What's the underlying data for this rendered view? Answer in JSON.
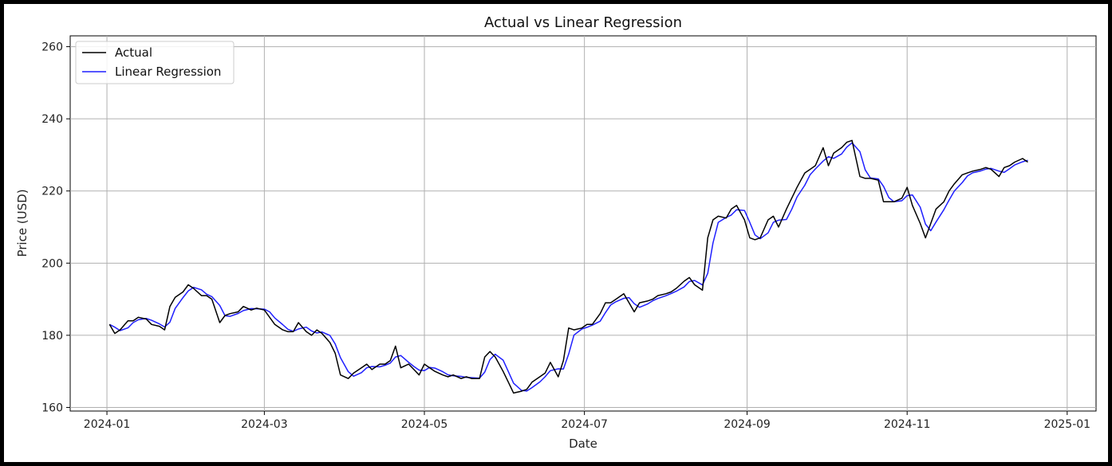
{
  "chart_data": {
    "type": "line",
    "title": "Actual vs Linear Regression",
    "xlabel": "Date",
    "ylabel": "Price (USD)",
    "grid": true,
    "legend_position": "top-left",
    "x_ticks": [
      "2024-01",
      "2024-03",
      "2024-05",
      "2024-07",
      "2024-09",
      "2024-11",
      "2025-01"
    ],
    "y_ticks": [
      160,
      180,
      200,
      220,
      240,
      260
    ],
    "xlim": [
      "2023-12-18",
      "2025-01-12"
    ],
    "ylim": [
      159,
      263
    ],
    "series": [
      {
        "name": "Actual",
        "color": "#000000",
        "points": [
          [
            "2024-01-02",
            183
          ],
          [
            "2024-01-04",
            180.5
          ],
          [
            "2024-01-06",
            181.5
          ],
          [
            "2024-01-09",
            184
          ],
          [
            "2024-01-11",
            184
          ],
          [
            "2024-01-13",
            185
          ],
          [
            "2024-01-16",
            184.5
          ],
          [
            "2024-01-18",
            183
          ],
          [
            "2024-01-21",
            182.5
          ],
          [
            "2024-01-23",
            181.5
          ],
          [
            "2024-01-25",
            188
          ],
          [
            "2024-01-27",
            190.5
          ],
          [
            "2024-01-30",
            192
          ],
          [
            "2024-02-01",
            194
          ],
          [
            "2024-02-03",
            193
          ],
          [
            "2024-02-06",
            191
          ],
          [
            "2024-02-08",
            191
          ],
          [
            "2024-02-10",
            190
          ],
          [
            "2024-02-13",
            183.5
          ],
          [
            "2024-02-15",
            185.5
          ],
          [
            "2024-02-17",
            186
          ],
          [
            "2024-02-20",
            186.5
          ],
          [
            "2024-02-22",
            188
          ],
          [
            "2024-02-25",
            187
          ],
          [
            "2024-02-27",
            187.5
          ],
          [
            "2024-03-01",
            187
          ],
          [
            "2024-03-03",
            185
          ],
          [
            "2024-03-05",
            183
          ],
          [
            "2024-03-08",
            181.5
          ],
          [
            "2024-03-10",
            181
          ],
          [
            "2024-03-12",
            181
          ],
          [
            "2024-03-14",
            183.5
          ],
          [
            "2024-03-17",
            181
          ],
          [
            "2024-03-19",
            180
          ],
          [
            "2024-03-21",
            181.5
          ],
          [
            "2024-03-23",
            180.5
          ],
          [
            "2024-03-26",
            178
          ],
          [
            "2024-03-28",
            175
          ],
          [
            "2024-03-30",
            169
          ],
          [
            "2024-04-02",
            168
          ],
          [
            "2024-04-04",
            169.5
          ],
          [
            "2024-04-07",
            171
          ],
          [
            "2024-04-09",
            172
          ],
          [
            "2024-04-11",
            170.5
          ],
          [
            "2024-04-14",
            172
          ],
          [
            "2024-04-16",
            172
          ],
          [
            "2024-04-18",
            173
          ],
          [
            "2024-04-20",
            177
          ],
          [
            "2024-04-22",
            171
          ],
          [
            "2024-04-25",
            172
          ],
          [
            "2024-04-27",
            170.5
          ],
          [
            "2024-04-29",
            169
          ],
          [
            "2024-05-01",
            172
          ],
          [
            "2024-05-03",
            171
          ],
          [
            "2024-05-05",
            170
          ],
          [
            "2024-05-08",
            169
          ],
          [
            "2024-05-10",
            168.5
          ],
          [
            "2024-05-12",
            169
          ],
          [
            "2024-05-15",
            168
          ],
          [
            "2024-05-17",
            168.5
          ],
          [
            "2024-05-19",
            168
          ],
          [
            "2024-05-22",
            168
          ],
          [
            "2024-05-24",
            174
          ],
          [
            "2024-05-26",
            175.5
          ],
          [
            "2024-05-28",
            174
          ],
          [
            "2024-05-31",
            170
          ],
          [
            "2024-06-02",
            167
          ],
          [
            "2024-06-04",
            164
          ],
          [
            "2024-06-07",
            164.5
          ],
          [
            "2024-06-09",
            165
          ],
          [
            "2024-06-11",
            167
          ],
          [
            "2024-06-14",
            168.5
          ],
          [
            "2024-06-16",
            169.5
          ],
          [
            "2024-06-18",
            172.5
          ],
          [
            "2024-06-21",
            168.5
          ],
          [
            "2024-06-23",
            173
          ],
          [
            "2024-06-25",
            182
          ],
          [
            "2024-06-27",
            181.5
          ],
          [
            "2024-06-30",
            182
          ],
          [
            "2024-07-02",
            183
          ],
          [
            "2024-07-04",
            183
          ],
          [
            "2024-07-07",
            186
          ],
          [
            "2024-07-09",
            189
          ],
          [
            "2024-07-11",
            189
          ],
          [
            "2024-07-13",
            190
          ],
          [
            "2024-07-16",
            191.5
          ],
          [
            "2024-07-18",
            189
          ],
          [
            "2024-07-20",
            186.5
          ],
          [
            "2024-07-22",
            189
          ],
          [
            "2024-07-25",
            189.5
          ],
          [
            "2024-07-27",
            190
          ],
          [
            "2024-07-29",
            191
          ],
          [
            "2024-08-01",
            191.5
          ],
          [
            "2024-08-03",
            192
          ],
          [
            "2024-08-05",
            193
          ],
          [
            "2024-08-08",
            195
          ],
          [
            "2024-08-10",
            196
          ],
          [
            "2024-08-12",
            194
          ],
          [
            "2024-08-15",
            192.5
          ],
          [
            "2024-08-17",
            207
          ],
          [
            "2024-08-19",
            212
          ],
          [
            "2024-08-21",
            213
          ],
          [
            "2024-08-24",
            212.5
          ],
          [
            "2024-08-26",
            215
          ],
          [
            "2024-08-28",
            216
          ],
          [
            "2024-08-31",
            212
          ],
          [
            "2024-09-02",
            207
          ],
          [
            "2024-09-04",
            206.5
          ],
          [
            "2024-09-06",
            207
          ],
          [
            "2024-09-09",
            212
          ],
          [
            "2024-09-11",
            213
          ],
          [
            "2024-09-13",
            210
          ],
          [
            "2024-09-16",
            215
          ],
          [
            "2024-09-18",
            218
          ],
          [
            "2024-09-20",
            221
          ],
          [
            "2024-09-23",
            225
          ],
          [
            "2024-09-25",
            226
          ],
          [
            "2024-09-27",
            227
          ],
          [
            "2024-09-30",
            232
          ],
          [
            "2024-10-02",
            227
          ],
          [
            "2024-10-04",
            230.5
          ],
          [
            "2024-10-07",
            232
          ],
          [
            "2024-10-09",
            233.5
          ],
          [
            "2024-10-11",
            234
          ],
          [
            "2024-10-14",
            224
          ],
          [
            "2024-10-16",
            223.5
          ],
          [
            "2024-10-18",
            223.5
          ],
          [
            "2024-10-21",
            223
          ],
          [
            "2024-10-23",
            217
          ],
          [
            "2024-10-25",
            217
          ],
          [
            "2024-10-27",
            217
          ],
          [
            "2024-10-30",
            218
          ],
          [
            "2024-11-01",
            221
          ],
          [
            "2024-11-03",
            216
          ],
          [
            "2024-11-06",
            211
          ],
          [
            "2024-11-08",
            207
          ],
          [
            "2024-11-10",
            211
          ],
          [
            "2024-11-12",
            215
          ],
          [
            "2024-11-15",
            217
          ],
          [
            "2024-11-17",
            220
          ],
          [
            "2024-11-19",
            222
          ],
          [
            "2024-11-22",
            224.5
          ],
          [
            "2024-11-24",
            225
          ],
          [
            "2024-11-26",
            225.5
          ],
          [
            "2024-11-29",
            226
          ],
          [
            "2024-12-01",
            226.5
          ],
          [
            "2024-12-03",
            226
          ],
          [
            "2024-12-06",
            224
          ],
          [
            "2024-12-08",
            226.5
          ],
          [
            "2024-12-10",
            227
          ],
          [
            "2024-12-12",
            228
          ],
          [
            "2024-12-15",
            229
          ],
          [
            "2024-12-17",
            228
          ]
        ]
      },
      {
        "name": "Linear Regression",
        "color": "#1f1fff",
        "points": []
      }
    ]
  }
}
